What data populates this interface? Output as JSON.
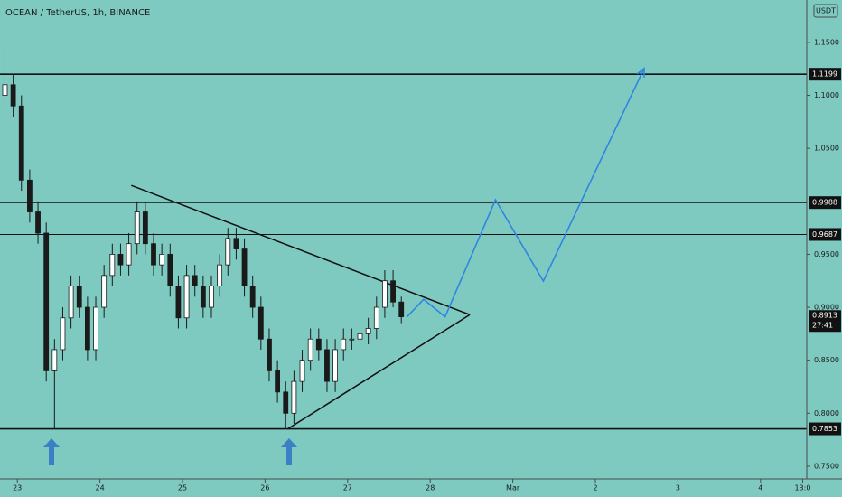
{
  "chart_data": {
    "type": "candlestick",
    "title": "OCEAN / TetherUS, 1h, BINANCE",
    "currency": "USDT",
    "x": [
      -0.15,
      -0.05,
      0.05,
      0.15,
      0.25,
      0.35,
      0.45,
      0.55,
      0.65,
      0.75,
      0.85,
      0.95,
      1.05,
      1.15,
      1.25,
      1.35,
      1.45,
      1.55,
      1.65,
      1.75,
      1.85,
      1.95,
      2.05,
      2.15,
      2.25,
      2.35,
      2.45,
      2.55,
      2.65,
      2.75,
      2.85,
      2.95,
      3.05,
      3.15,
      3.25,
      3.35,
      3.45,
      3.55,
      3.65,
      3.75,
      3.85,
      3.95,
      4.05,
      4.15,
      4.25,
      4.35,
      4.45,
      4.55,
      4.65
    ],
    "open": [
      1.1,
      1.11,
      1.09,
      1.02,
      0.99,
      0.97,
      0.84,
      0.86,
      0.89,
      0.92,
      0.9,
      0.86,
      0.9,
      0.93,
      0.95,
      0.94,
      0.96,
      0.99,
      0.96,
      0.94,
      0.95,
      0.92,
      0.89,
      0.93,
      0.92,
      0.9,
      0.92,
      0.94,
      0.965,
      0.955,
      0.92,
      0.9,
      0.87,
      0.84,
      0.82,
      0.8,
      0.83,
      0.85,
      0.87,
      0.86,
      0.83,
      0.86,
      0.87,
      0.87,
      0.875,
      0.88,
      0.9,
      0.925,
      0.905
    ],
    "high": [
      1.145,
      1.12,
      1.1,
      1.03,
      1.0,
      0.98,
      0.87,
      0.9,
      0.93,
      0.93,
      0.91,
      0.91,
      0.94,
      0.96,
      0.96,
      0.97,
      1.0,
      1.0,
      0.97,
      0.96,
      0.96,
      0.93,
      0.94,
      0.94,
      0.93,
      0.93,
      0.95,
      0.975,
      0.975,
      0.965,
      0.93,
      0.91,
      0.88,
      0.85,
      0.83,
      0.84,
      0.86,
      0.88,
      0.88,
      0.87,
      0.87,
      0.88,
      0.88,
      0.885,
      0.89,
      0.91,
      0.935,
      0.935,
      0.91
    ],
    "low": [
      1.09,
      1.08,
      1.01,
      0.98,
      0.96,
      0.83,
      0.785,
      0.85,
      0.88,
      0.89,
      0.85,
      0.85,
      0.89,
      0.92,
      0.93,
      0.93,
      0.95,
      0.95,
      0.93,
      0.93,
      0.91,
      0.88,
      0.88,
      0.91,
      0.89,
      0.89,
      0.91,
      0.93,
      0.945,
      0.91,
      0.89,
      0.86,
      0.83,
      0.81,
      0.785,
      0.79,
      0.82,
      0.84,
      0.85,
      0.82,
      0.82,
      0.85,
      0.86,
      0.86,
      0.865,
      0.87,
      0.89,
      0.9,
      0.885
    ],
    "close": [
      1.11,
      1.09,
      1.02,
      0.99,
      0.97,
      0.84,
      0.86,
      0.89,
      0.92,
      0.9,
      0.86,
      0.9,
      0.93,
      0.95,
      0.94,
      0.96,
      0.99,
      0.96,
      0.94,
      0.95,
      0.92,
      0.89,
      0.93,
      0.92,
      0.9,
      0.92,
      0.94,
      0.965,
      0.955,
      0.92,
      0.9,
      0.87,
      0.84,
      0.82,
      0.8,
      0.83,
      0.85,
      0.87,
      0.86,
      0.83,
      0.86,
      0.87,
      0.87,
      0.875,
      0.88,
      0.9,
      0.925,
      0.905,
      0.891
    ],
    "up_color": "#ffffff",
    "down_color": "#1a1a1a",
    "xlim": [
      -0.21,
      9.56
    ],
    "xticks": [
      {
        "value": 0,
        "label": "23"
      },
      {
        "value": 1,
        "label": "24"
      },
      {
        "value": 2,
        "label": "25"
      },
      {
        "value": 3,
        "label": "26"
      },
      {
        "value": 4,
        "label": "27"
      },
      {
        "value": 5,
        "label": "28"
      },
      {
        "value": 6,
        "label": "Mar"
      },
      {
        "value": 7,
        "label": "2"
      },
      {
        "value": 8,
        "label": "3"
      },
      {
        "value": 9,
        "label": "4"
      },
      {
        "value": 9.51,
        "label": "13:0"
      }
    ],
    "ylim": [
      0.738,
      1.19
    ],
    "yticks": [
      {
        "value": 1.15,
        "label": "1.1500"
      },
      {
        "value": 1.1,
        "label": "1.1000"
      },
      {
        "value": 1.05,
        "label": "1.0500"
      },
      {
        "value": 0.95,
        "label": "0.9500"
      },
      {
        "value": 0.9,
        "label": "0.9000"
      },
      {
        "value": 0.85,
        "label": "0.8500"
      },
      {
        "value": 0.8,
        "label": "0.8000"
      },
      {
        "value": 0.75,
        "label": "0.7500"
      }
    ],
    "levels": [
      {
        "value": 1.1199,
        "label": "1.1199"
      },
      {
        "value": 0.9988,
        "label": "0.9988"
      },
      {
        "value": 0.9687,
        "label": "0.9687"
      },
      {
        "value": 0.7853,
        "label": "0.7853"
      }
    ],
    "current_price": {
      "value": 0.8913,
      "label": "0.8913",
      "countdown": "27:41"
    },
    "triangle": [
      {
        "x": [
          1.38,
          5.48
        ],
        "y": [
          1.015,
          0.893
        ]
      },
      {
        "x": [
          3.27,
          5.48
        ],
        "y": [
          0.785,
          0.893
        ]
      }
    ],
    "projection": {
      "color": "#2e86e0",
      "x": [
        4.72,
        4.92,
        5.18,
        5.79,
        6.37,
        7.59
      ],
      "y": [
        0.891,
        0.9075,
        0.891,
        1.0014,
        0.9247,
        1.1254
      ]
    }
  }
}
